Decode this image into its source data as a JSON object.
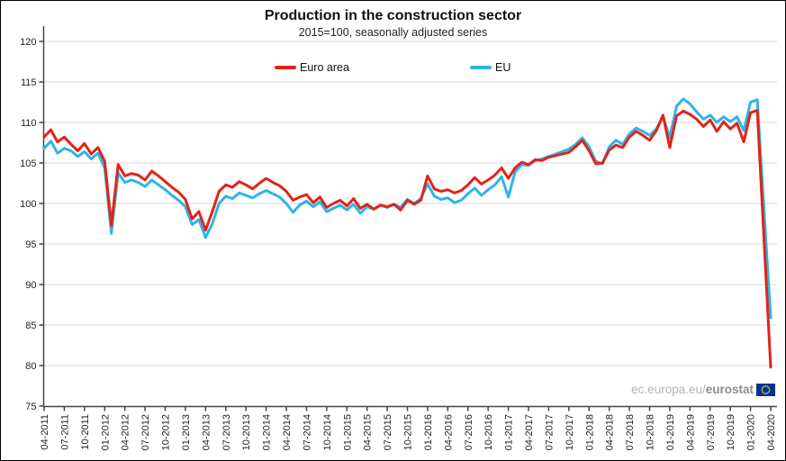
{
  "figure": {
    "title": "Production in the construction sector",
    "subtitle": "2015=100, seasonally adjusted series",
    "watermark": {
      "prefix": "ec.europa.eu/",
      "bold": "eurostat"
    },
    "colors": {
      "euro_area": "#e02418",
      "eu": "#2eb4e8",
      "grid": "#d9d9d9",
      "axis": "#444444",
      "tick_text": "#222222",
      "flag_blue": "#003399",
      "flag_stars": "#ffcc00"
    }
  },
  "chart_data": {
    "type": "line",
    "title": "Production in the construction sector",
    "subtitle": "2015=100, seasonally adjusted series",
    "x_start": "04-2011",
    "x_end": "04-2020",
    "x_frequency": "monthly",
    "grid": "horizontal",
    "legend_position": "top-center",
    "ylim": [
      75,
      120
    ],
    "y_ticks": [
      75,
      80,
      85,
      90,
      95,
      100,
      105,
      110,
      115,
      120
    ],
    "x_tick_labels": [
      "04-2011",
      "07-2011",
      "10-2011",
      "01-2012",
      "04-2012",
      "07-2012",
      "10-2012",
      "01-2013",
      "04-2013",
      "07-2013",
      "10-2013",
      "01-2014",
      "04-2014",
      "07-2014",
      "10-2014",
      "01-2015",
      "04-2015",
      "07-2015",
      "10-2015",
      "01-2016",
      "04-2016",
      "07-2016",
      "10-2016",
      "01-2017",
      "04-2017",
      "07-2017",
      "10-2017",
      "01-2018",
      "04-2018",
      "07-2018",
      "10-2018",
      "01-2019",
      "04-2019",
      "07-2019",
      "10-2019",
      "01-2020",
      "04-2020"
    ],
    "series": [
      {
        "name": "Euro area",
        "color": "#e02418",
        "values": [
          108.2,
          109.1,
          107.6,
          108.2,
          107.3,
          106.5,
          107.4,
          106.1,
          106.9,
          105.2,
          97.3,
          104.8,
          103.4,
          103.7,
          103.5,
          102.9,
          104.0,
          103.4,
          102.7,
          102.0,
          101.4,
          100.5,
          98.1,
          99.0,
          96.7,
          99.0,
          101.5,
          102.3,
          102.0,
          102.7,
          102.3,
          101.8,
          102.5,
          103.1,
          102.6,
          102.2,
          101.5,
          100.4,
          100.8,
          101.1,
          100.1,
          100.8,
          99.5,
          100.0,
          100.4,
          99.7,
          100.6,
          99.4,
          99.9,
          99.3,
          99.8,
          99.6,
          99.9,
          99.2,
          100.4,
          99.9,
          100.4,
          103.4,
          101.8,
          101.5,
          101.7,
          101.3,
          101.6,
          102.3,
          103.2,
          102.4,
          102.9,
          103.5,
          104.4,
          103.1,
          104.4,
          105.1,
          104.8,
          105.4,
          105.3,
          105.7,
          105.9,
          106.1,
          106.3,
          107.0,
          107.8,
          106.5,
          104.9,
          105.0,
          106.6,
          107.2,
          106.9,
          108.2,
          108.9,
          108.4,
          107.8,
          109.0,
          110.9,
          106.9,
          110.8,
          111.4,
          111.0,
          110.4,
          109.5,
          110.3,
          108.9,
          110.1,
          109.2,
          109.9,
          107.6,
          111.2,
          111.5,
          95.7,
          79.8
        ]
      },
      {
        "name": "EU",
        "color": "#2eb4e8",
        "values": [
          106.8,
          107.7,
          106.2,
          106.8,
          106.5,
          105.8,
          106.4,
          105.5,
          106.2,
          104.4,
          96.3,
          103.8,
          102.6,
          102.9,
          102.6,
          102.1,
          102.9,
          102.3,
          101.7,
          101.0,
          100.4,
          99.6,
          97.4,
          98.0,
          95.8,
          97.5,
          100.0,
          100.9,
          100.6,
          101.3,
          101.0,
          100.7,
          101.2,
          101.6,
          101.2,
          100.8,
          100.0,
          98.9,
          99.8,
          100.3,
          99.6,
          100.2,
          99.0,
          99.4,
          99.8,
          99.2,
          99.9,
          98.8,
          99.6,
          99.3,
          99.8,
          99.5,
          99.9,
          99.5,
          100.5,
          100.0,
          100.6,
          102.4,
          100.9,
          100.5,
          100.7,
          100.1,
          100.4,
          101.2,
          101.9,
          101.0,
          101.7,
          102.3,
          103.3,
          100.8,
          103.9,
          104.8,
          104.7,
          105.3,
          105.5,
          105.8,
          106.1,
          106.4,
          106.7,
          107.3,
          108.1,
          107.0,
          105.2,
          104.9,
          107.0,
          107.8,
          107.3,
          108.6,
          109.3,
          108.9,
          108.4,
          109.2,
          110.7,
          108.1,
          112.0,
          112.9,
          112.3,
          111.3,
          110.4,
          110.9,
          110.0,
          110.7,
          110.1,
          110.7,
          109.0,
          112.5,
          112.8,
          99.3,
          85.9
        ]
      }
    ]
  }
}
